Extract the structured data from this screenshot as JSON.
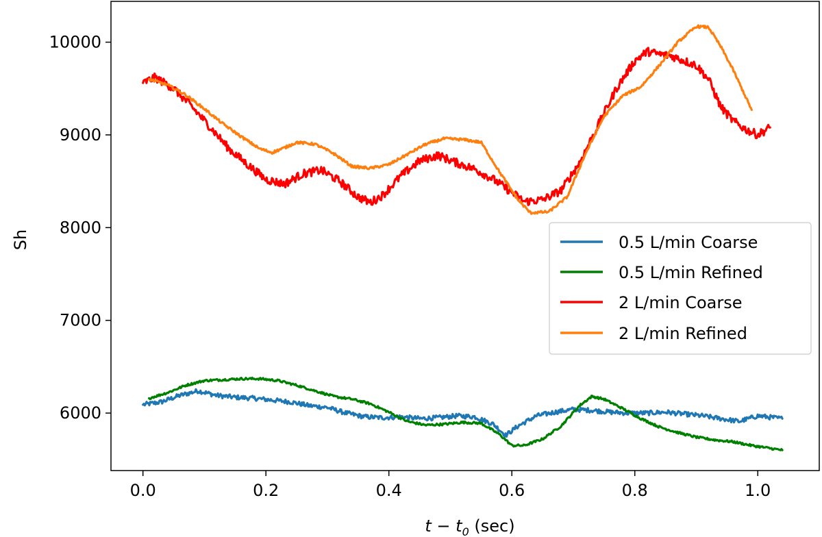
{
  "chart_data": {
    "type": "line",
    "title": "",
    "xlabel": "t − t₀ (sec)",
    "xlabel_main": "t − t",
    "xlabel_sub": "0",
    "xlabel_units": "(sec)",
    "ylabel": "Sh",
    "xlim": [
      -0.052,
      1.1
    ],
    "ylim": [
      5380,
      10440
    ],
    "xticks": [
      0.0,
      0.2,
      0.4,
      0.6,
      0.8,
      1.0
    ],
    "xtick_labels": [
      "0.0",
      "0.2",
      "0.4",
      "0.6",
      "0.8",
      "1.0"
    ],
    "yticks": [
      6000,
      7000,
      8000,
      9000,
      10000
    ],
    "ytick_labels": [
      "6000",
      "7000",
      "8000",
      "9000",
      "10000"
    ],
    "grid": false,
    "legend_position": "center-right",
    "series": [
      {
        "name": "0.5 L/min Coarse",
        "color": "#1f77b4",
        "noise": 25,
        "x": [
          0.0,
          0.03,
          0.06,
          0.09,
          0.12,
          0.15,
          0.18,
          0.21,
          0.24,
          0.27,
          0.3,
          0.33,
          0.36,
          0.39,
          0.42,
          0.45,
          0.48,
          0.51,
          0.54,
          0.57,
          0.59,
          0.61,
          0.64,
          0.67,
          0.7,
          0.73,
          0.76,
          0.79,
          0.82,
          0.85,
          0.88,
          0.91,
          0.94,
          0.97,
          1.0,
          1.04
        ],
        "y": [
          6090,
          6120,
          6190,
          6240,
          6190,
          6170,
          6160,
          6140,
          6120,
          6080,
          6060,
          6000,
          5960,
          5950,
          5960,
          5940,
          5950,
          5970,
          5960,
          5880,
          5760,
          5860,
          5970,
          6010,
          6040,
          6030,
          6010,
          6000,
          6000,
          6010,
          5990,
          5970,
          5940,
          5910,
          5970,
          5940
        ]
      },
      {
        "name": "0.5 L/min Refined",
        "color": "#008000",
        "noise": 12,
        "x": [
          0.01,
          0.04,
          0.07,
          0.1,
          0.13,
          0.16,
          0.19,
          0.22,
          0.25,
          0.28,
          0.31,
          0.34,
          0.37,
          0.4,
          0.43,
          0.46,
          0.49,
          0.52,
          0.55,
          0.58,
          0.6,
          0.62,
          0.65,
          0.68,
          0.71,
          0.73,
          0.75,
          0.78,
          0.81,
          0.84,
          0.87,
          0.9,
          0.93,
          0.96,
          0.99,
          1.04
        ],
        "y": [
          6160,
          6220,
          6300,
          6350,
          6360,
          6370,
          6370,
          6350,
          6300,
          6240,
          6180,
          6150,
          6100,
          6010,
          5910,
          5870,
          5880,
          5900,
          5890,
          5770,
          5650,
          5650,
          5720,
          5860,
          6080,
          6180,
          6150,
          6050,
          5940,
          5850,
          5790,
          5740,
          5710,
          5690,
          5650,
          5600
        ]
      },
      {
        "name": "2 L/min Coarse",
        "color": "#ff0000",
        "noise": 45,
        "x": [
          0.0,
          0.02,
          0.05,
          0.08,
          0.11,
          0.14,
          0.17,
          0.2,
          0.23,
          0.26,
          0.29,
          0.32,
          0.35,
          0.37,
          0.39,
          0.42,
          0.45,
          0.48,
          0.51,
          0.54,
          0.57,
          0.6,
          0.62,
          0.65,
          0.68,
          0.71,
          0.74,
          0.77,
          0.8,
          0.82,
          0.84,
          0.86,
          0.88,
          0.9,
          0.92,
          0.94,
          0.96,
          0.98,
          1.0,
          1.02
        ],
        "y": [
          9560,
          9620,
          9500,
          9300,
          9080,
          8850,
          8680,
          8520,
          8470,
          8580,
          8620,
          8500,
          8330,
          8270,
          8350,
          8560,
          8720,
          8780,
          8700,
          8630,
          8520,
          8380,
          8280,
          8300,
          8400,
          8700,
          9100,
          9500,
          9800,
          9900,
          9870,
          9850,
          9800,
          9750,
          9600,
          9300,
          9150,
          9060,
          9000,
          9080
        ]
      },
      {
        "name": "2 L/min Refined",
        "color": "#ff7f0e",
        "noise": 14,
        "x": [
          0.01,
          0.04,
          0.07,
          0.1,
          0.13,
          0.16,
          0.19,
          0.21,
          0.23,
          0.25,
          0.28,
          0.31,
          0.34,
          0.37,
          0.4,
          0.43,
          0.46,
          0.49,
          0.52,
          0.55,
          0.58,
          0.61,
          0.63,
          0.66,
          0.69,
          0.72,
          0.75,
          0.78,
          0.81,
          0.84,
          0.87,
          0.9,
          0.92,
          0.94,
          0.96,
          0.99
        ],
        "y": [
          9600,
          9540,
          9430,
          9280,
          9120,
          8980,
          8850,
          8810,
          8860,
          8920,
          8900,
          8800,
          8660,
          8640,
          8680,
          8790,
          8900,
          8960,
          8950,
          8920,
          8600,
          8300,
          8160,
          8170,
          8330,
          8800,
          9200,
          9420,
          9520,
          9750,
          10000,
          10170,
          10160,
          9950,
          9700,
          9270
        ]
      }
    ]
  }
}
